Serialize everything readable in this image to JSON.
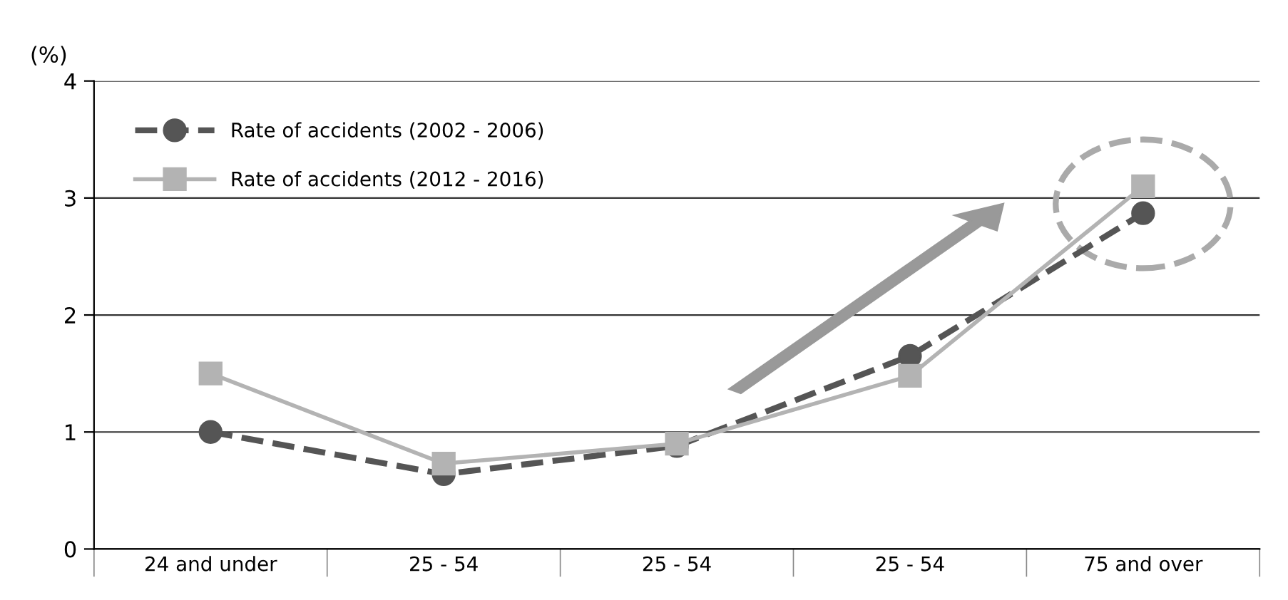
{
  "chart_data": {
    "type": "line",
    "ylabel": "(%)",
    "categories": [
      "24 and under",
      "25 - 54",
      "25 - 54",
      "25 - 54",
      "75 and over"
    ],
    "series": [
      {
        "name": "Rate of accidents (2002 - 2006)",
        "color": "#555555",
        "values": [
          1.0,
          0.64,
          0.88,
          1.65,
          2.87
        ],
        "marker": "circle",
        "line_style": "dashed"
      },
      {
        "name": "Rate of accidents (2012 - 2016)",
        "color": "#b3b3b3",
        "values": [
          1.5,
          0.73,
          0.9,
          1.48,
          3.1
        ],
        "marker": "square",
        "line_style": "solid"
      }
    ],
    "ylim": [
      0,
      4
    ],
    "yticks": [
      0,
      1,
      2,
      3,
      4
    ],
    "grid": "y",
    "legend": "top left"
  }
}
